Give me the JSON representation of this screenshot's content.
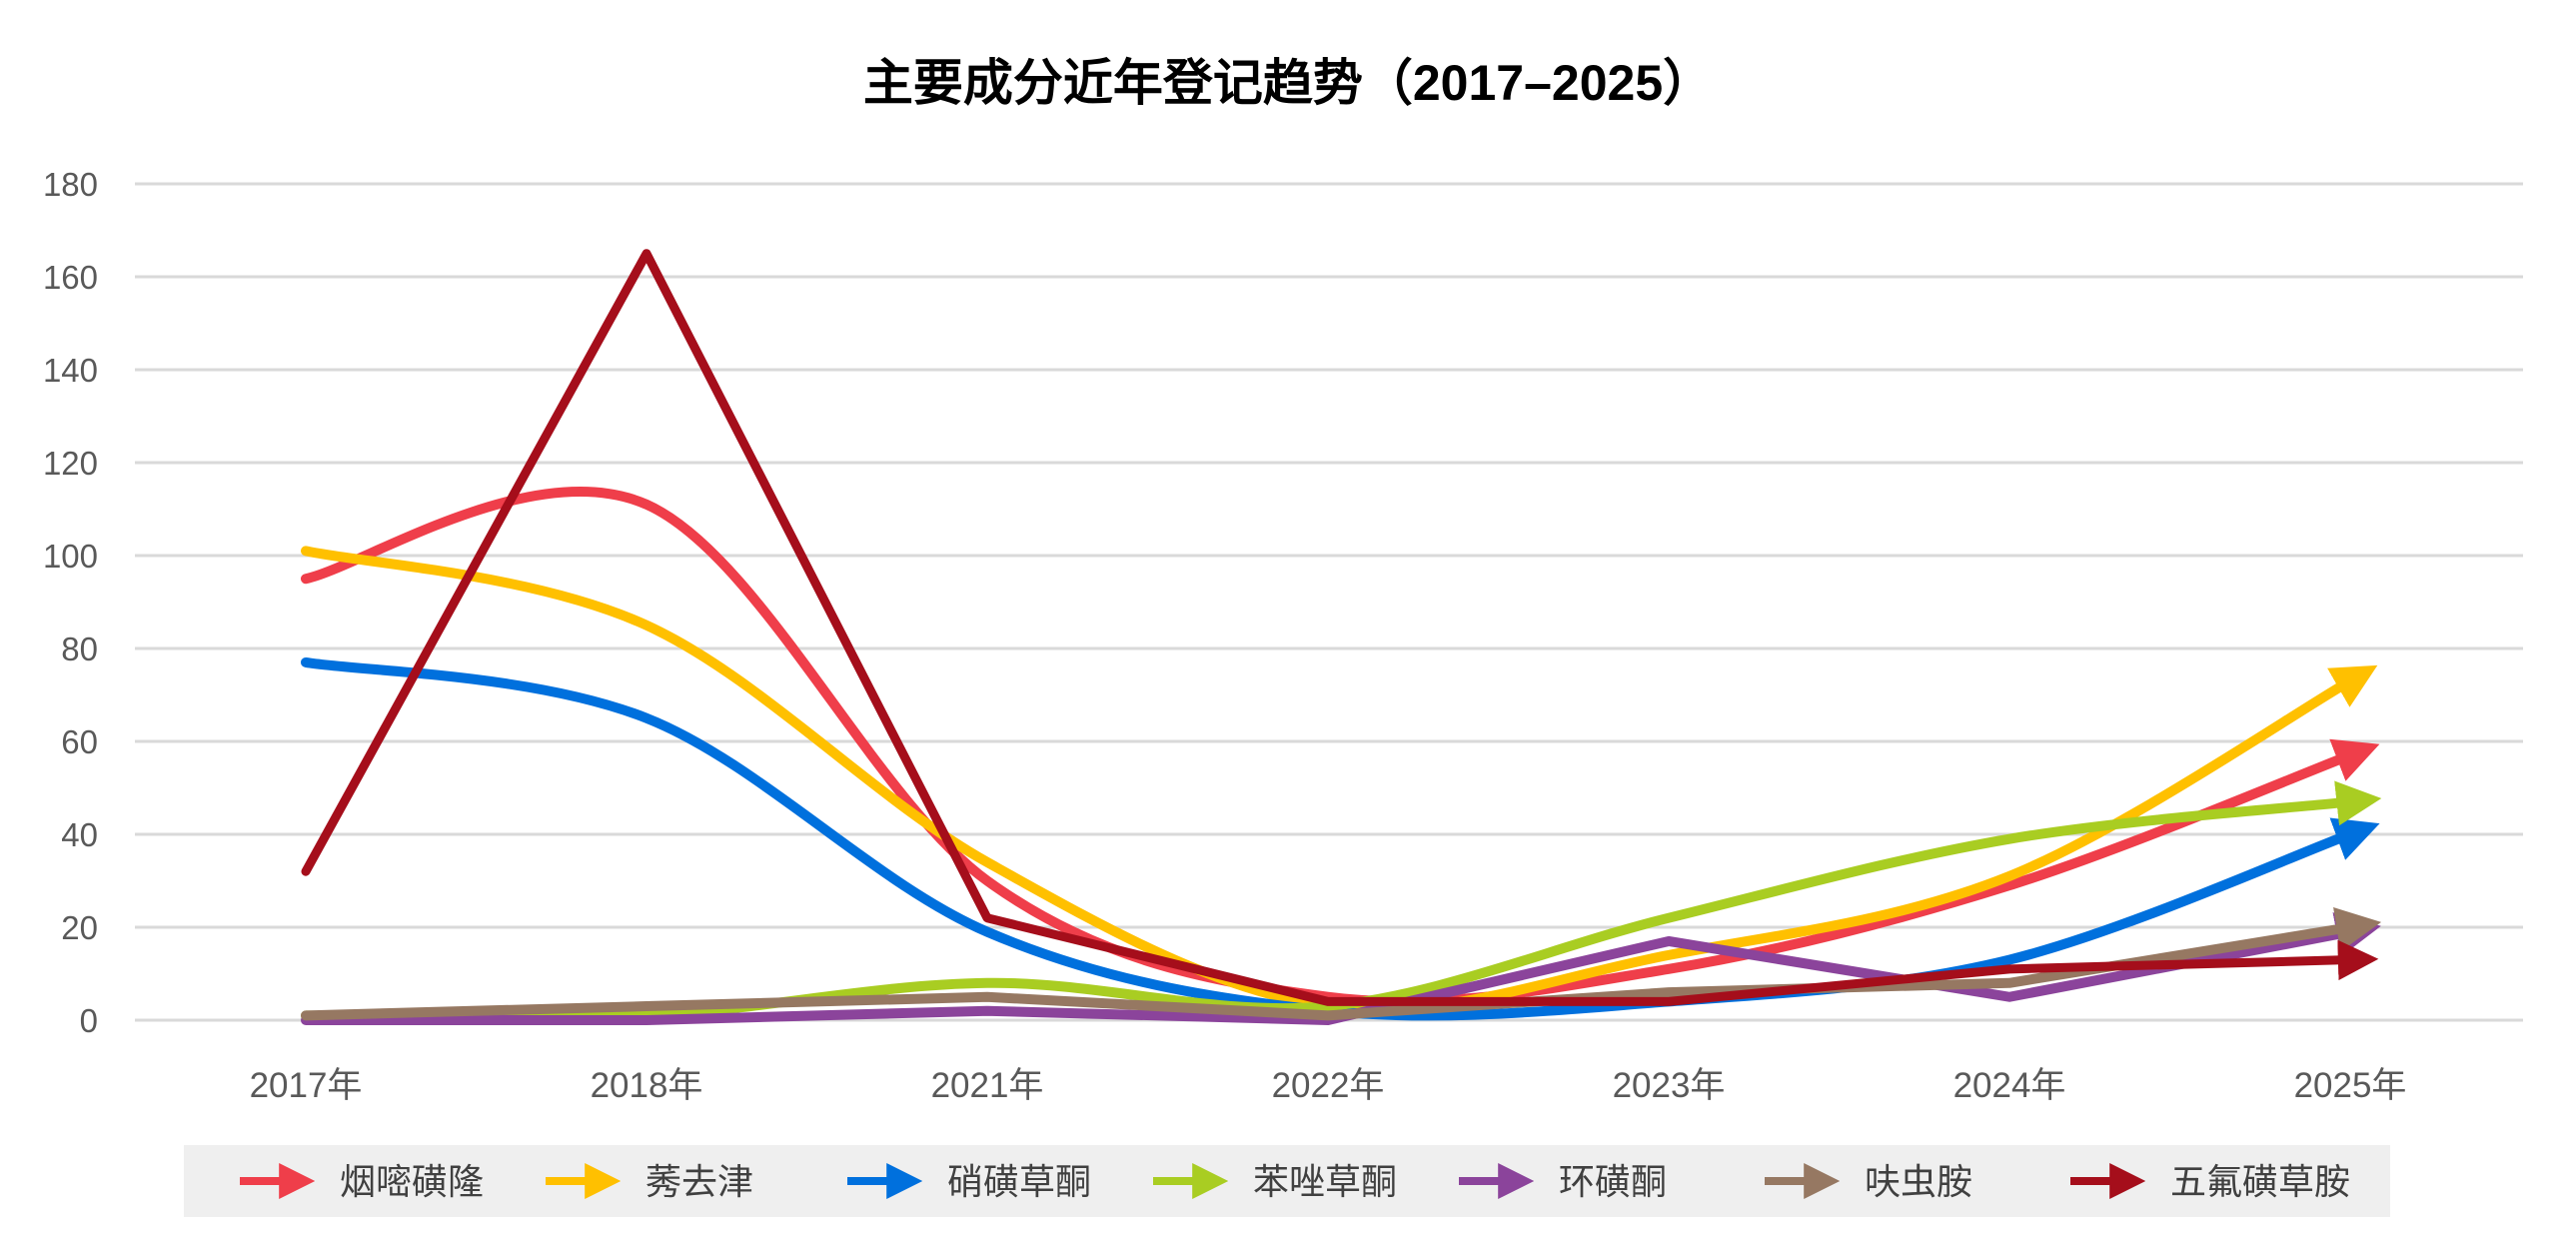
{
  "chart_data": {
    "type": "line",
    "title": "主要成分近年登记趋势（2017–2025）",
    "xlabel": "",
    "ylabel": "",
    "categories": [
      "2017年",
      "2018年",
      "2021年",
      "2022年",
      "2023年",
      "2024年",
      "2025年"
    ],
    "ylim": [
      0,
      180
    ],
    "yticks": [
      0,
      20,
      40,
      60,
      80,
      100,
      120,
      140,
      160,
      180
    ],
    "grid": true,
    "legend_position": "bottom",
    "series": [
      {
        "name": "烟嘧磺隆",
        "color": "#EF3E4A",
        "smooth": true,
        "values": [
          95,
          111,
          30,
          5,
          11,
          29,
          57
        ]
      },
      {
        "name": "莠去津",
        "color": "#FFC000",
        "smooth": true,
        "values": [
          101,
          85,
          34,
          3,
          14,
          31,
          73
        ]
      },
      {
        "name": "硝磺草酮",
        "color": "#0070DD",
        "smooth": true,
        "values": [
          77,
          65,
          19,
          2,
          4,
          13,
          40
        ]
      },
      {
        "name": "苯唑草酮",
        "color": "#A9CD22",
        "smooth": true,
        "values": [
          1,
          1,
          8,
          3,
          22,
          39,
          47
        ]
      },
      {
        "name": "环磺酮",
        "color": "#8B449B",
        "smooth": false,
        "values": [
          0,
          0,
          2,
          0,
          17,
          5,
          19
        ]
      },
      {
        "name": "呋虫胺",
        "color": "#967862",
        "smooth": false,
        "values": [
          1,
          3,
          5,
          1,
          6,
          8,
          20
        ]
      },
      {
        "name": "五氟磺草胺",
        "color": "#A50E1B",
        "smooth": false,
        "values": [
          32,
          165,
          22,
          4,
          4,
          11,
          13
        ]
      }
    ]
  }
}
